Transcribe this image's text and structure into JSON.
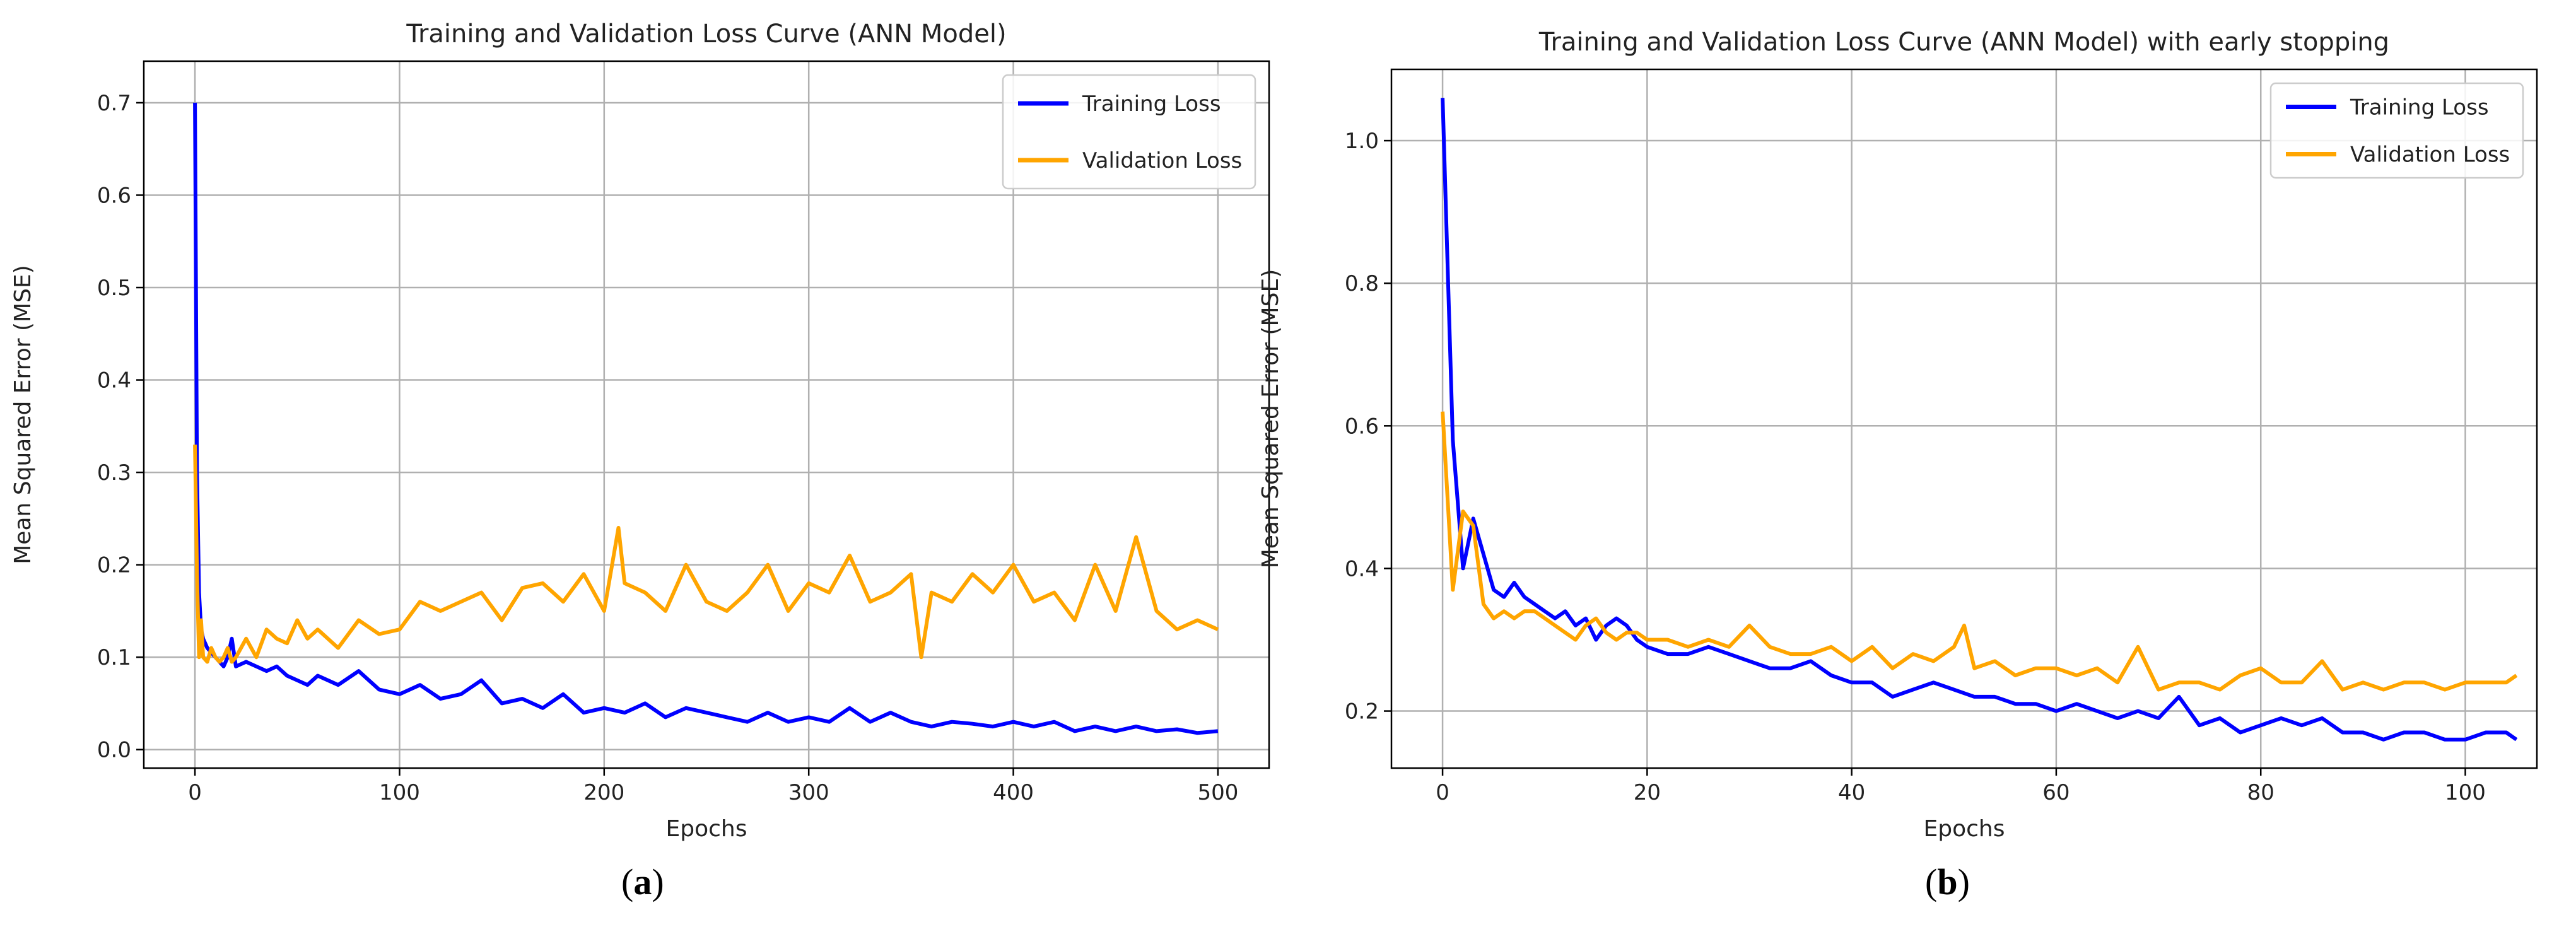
{
  "figure": {
    "panels": [
      {
        "label_open": "(",
        "label_letter": "a",
        "label_close": ")"
      },
      {
        "label_open": "(",
        "label_letter": "b",
        "label_close": ")"
      }
    ]
  },
  "chart_data": [
    {
      "type": "line",
      "title": "Training and Validation Loss Curve (ANN Model)",
      "xlabel": "Epochs",
      "ylabel": "Mean Squared Error (MSE)",
      "xlim": [
        -25,
        525
      ],
      "ylim": [
        -0.02,
        0.745
      ],
      "xticks": [
        0,
        100,
        200,
        300,
        400,
        500
      ],
      "xtick_labels": [
        "0",
        "100",
        "200",
        "300",
        "400",
        "500"
      ],
      "yticks": [
        0.0,
        0.1,
        0.2,
        0.3,
        0.4,
        0.5,
        0.6,
        0.7
      ],
      "ytick_labels": [
        "0.0",
        "0.1",
        "0.2",
        "0.3",
        "0.4",
        "0.5",
        "0.6",
        "0.7"
      ],
      "grid": true,
      "legend_position": "top-right",
      "series": [
        {
          "name": "Training Loss",
          "color": "#0000ff",
          "x": [
            0,
            1,
            2,
            3,
            4,
            6,
            8,
            10,
            12,
            14,
            16,
            18,
            20,
            25,
            30,
            35,
            40,
            45,
            50,
            55,
            60,
            70,
            80,
            90,
            100,
            110,
            120,
            130,
            140,
            150,
            160,
            170,
            180,
            190,
            200,
            210,
            220,
            230,
            240,
            250,
            260,
            270,
            280,
            290,
            300,
            310,
            320,
            330,
            340,
            350,
            360,
            370,
            380,
            390,
            400,
            410,
            420,
            430,
            440,
            450,
            460,
            470,
            480,
            490,
            500
          ],
          "y": [
            0.7,
            0.3,
            0.17,
            0.13,
            0.12,
            0.11,
            0.105,
            0.1,
            0.095,
            0.09,
            0.1,
            0.12,
            0.09,
            0.095,
            0.09,
            0.085,
            0.09,
            0.08,
            0.075,
            0.07,
            0.08,
            0.07,
            0.085,
            0.065,
            0.06,
            0.07,
            0.055,
            0.06,
            0.075,
            0.05,
            0.055,
            0.045,
            0.06,
            0.04,
            0.045,
            0.04,
            0.05,
            0.035,
            0.045,
            0.04,
            0.035,
            0.03,
            0.04,
            0.03,
            0.035,
            0.03,
            0.045,
            0.03,
            0.04,
            0.03,
            0.025,
            0.03,
            0.028,
            0.025,
            0.03,
            0.025,
            0.03,
            0.02,
            0.025,
            0.02,
            0.025,
            0.02,
            0.022,
            0.018,
            0.02
          ]
        },
        {
          "name": "Validation Loss",
          "color": "#ffa500",
          "x": [
            0,
            1,
            2,
            3,
            4,
            6,
            8,
            10,
            12,
            14,
            16,
            18,
            20,
            25,
            30,
            35,
            40,
            45,
            50,
            55,
            60,
            70,
            80,
            90,
            100,
            110,
            120,
            130,
            140,
            150,
            160,
            170,
            180,
            190,
            200,
            207,
            210,
            220,
            230,
            240,
            250,
            260,
            270,
            280,
            290,
            300,
            310,
            320,
            330,
            340,
            350,
            355,
            360,
            370,
            380,
            390,
            400,
            410,
            420,
            430,
            440,
            450,
            460,
            470,
            480,
            490,
            500
          ],
          "y": [
            0.33,
            0.19,
            0.1,
            0.14,
            0.1,
            0.095,
            0.11,
            0.1,
            0.095,
            0.1,
            0.11,
            0.095,
            0.1,
            0.12,
            0.1,
            0.13,
            0.12,
            0.115,
            0.14,
            0.12,
            0.13,
            0.11,
            0.14,
            0.125,
            0.13,
            0.16,
            0.15,
            0.16,
            0.17,
            0.14,
            0.175,
            0.18,
            0.16,
            0.19,
            0.15,
            0.24,
            0.18,
            0.17,
            0.15,
            0.2,
            0.16,
            0.15,
            0.17,
            0.2,
            0.15,
            0.18,
            0.17,
            0.21,
            0.16,
            0.17,
            0.19,
            0.1,
            0.17,
            0.16,
            0.19,
            0.17,
            0.2,
            0.16,
            0.17,
            0.14,
            0.2,
            0.15,
            0.23,
            0.15,
            0.13,
            0.14,
            0.13
          ]
        }
      ]
    },
    {
      "type": "line",
      "title": "Training and Validation Loss Curve (ANN Model) with early stopping",
      "xlabel": "Epochs",
      "ylabel": "Mean Squared Error (MSE)",
      "xlim": [
        -5,
        107
      ],
      "ylim": [
        0.12,
        1.1
      ],
      "xticks": [
        0,
        20,
        40,
        60,
        80,
        100
      ],
      "xtick_labels": [
        "0",
        "20",
        "40",
        "60",
        "80",
        "100"
      ],
      "yticks": [
        0.2,
        0.4,
        0.6,
        0.8,
        1.0
      ],
      "ytick_labels": [
        "0.2",
        "0.4",
        "0.6",
        "0.8",
        "1.0"
      ],
      "grid": true,
      "legend_position": "top-right",
      "series": [
        {
          "name": "Training Loss",
          "color": "#0000ff",
          "x": [
            0,
            1,
            2,
            3,
            4,
            5,
            6,
            7,
            8,
            9,
            10,
            11,
            12,
            13,
            14,
            15,
            16,
            17,
            18,
            19,
            20,
            22,
            24,
            26,
            28,
            30,
            32,
            34,
            36,
            38,
            40,
            42,
            44,
            46,
            48,
            50,
            52,
            54,
            56,
            58,
            60,
            62,
            64,
            66,
            68,
            70,
            72,
            74,
            76,
            78,
            80,
            82,
            84,
            86,
            88,
            90,
            92,
            94,
            96,
            98,
            100,
            102,
            104,
            105
          ],
          "y": [
            1.06,
            0.58,
            0.4,
            0.47,
            0.42,
            0.37,
            0.36,
            0.38,
            0.36,
            0.35,
            0.34,
            0.33,
            0.34,
            0.32,
            0.33,
            0.3,
            0.32,
            0.33,
            0.32,
            0.3,
            0.29,
            0.28,
            0.28,
            0.29,
            0.28,
            0.27,
            0.26,
            0.26,
            0.27,
            0.25,
            0.24,
            0.24,
            0.22,
            0.23,
            0.24,
            0.23,
            0.22,
            0.22,
            0.21,
            0.21,
            0.2,
            0.21,
            0.2,
            0.19,
            0.2,
            0.19,
            0.22,
            0.18,
            0.19,
            0.17,
            0.18,
            0.19,
            0.18,
            0.19,
            0.17,
            0.17,
            0.16,
            0.17,
            0.17,
            0.16,
            0.16,
            0.17,
            0.17,
            0.16
          ]
        },
        {
          "name": "Validation Loss",
          "color": "#ffa500",
          "x": [
            0,
            1,
            2,
            3,
            4,
            5,
            6,
            7,
            8,
            9,
            10,
            11,
            12,
            13,
            14,
            15,
            16,
            17,
            18,
            19,
            20,
            22,
            24,
            26,
            28,
            30,
            32,
            34,
            36,
            38,
            40,
            42,
            44,
            46,
            48,
            50,
            51,
            52,
            54,
            56,
            58,
            60,
            62,
            64,
            66,
            68,
            70,
            72,
            74,
            76,
            78,
            80,
            82,
            84,
            86,
            88,
            90,
            92,
            94,
            96,
            98,
            100,
            102,
            104,
            105
          ],
          "y": [
            0.62,
            0.37,
            0.48,
            0.46,
            0.35,
            0.33,
            0.34,
            0.33,
            0.34,
            0.34,
            0.33,
            0.32,
            0.31,
            0.3,
            0.32,
            0.33,
            0.31,
            0.3,
            0.31,
            0.31,
            0.3,
            0.3,
            0.29,
            0.3,
            0.29,
            0.32,
            0.29,
            0.28,
            0.28,
            0.29,
            0.27,
            0.29,
            0.26,
            0.28,
            0.27,
            0.29,
            0.32,
            0.26,
            0.27,
            0.25,
            0.26,
            0.26,
            0.25,
            0.26,
            0.24,
            0.29,
            0.23,
            0.24,
            0.24,
            0.23,
            0.25,
            0.26,
            0.24,
            0.24,
            0.27,
            0.23,
            0.24,
            0.23,
            0.24,
            0.24,
            0.23,
            0.24,
            0.24,
            0.24,
            0.25
          ]
        }
      ]
    }
  ]
}
